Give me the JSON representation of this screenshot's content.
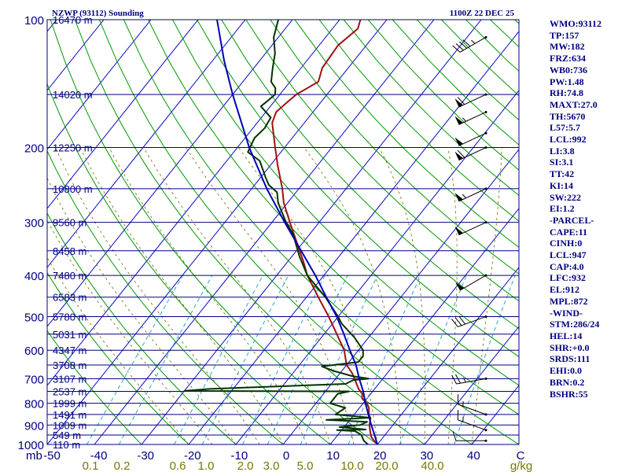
{
  "header": {
    "station_title": "NZWP (93112) Sounding",
    "valid_time": "1100Z 22 DEC 25"
  },
  "chart_data": {
    "type": "line",
    "xlabel": "C",
    "mixing_ratio_unit": "g/kg",
    "pressure_axis_label": "mb",
    "xlim": [
      -50,
      50
    ],
    "ylim": [
      1000,
      100
    ],
    "temperature_ticks": [
      "-50",
      "-40",
      "-30",
      "-20",
      "-10",
      "0",
      "10",
      "20",
      "30",
      "40",
      "C"
    ],
    "mixing_ratio_ticks": [
      "0.1",
      "0.2",
      "0.6",
      "1.0",
      "2.0",
      "3.0",
      "5.0",
      "10.0",
      "20.0",
      "40.0",
      "g/kg"
    ],
    "mixing_ratio_values": [
      0.1,
      0.2,
      0.6,
      1.0,
      2.0,
      3.0,
      5.0,
      10.0,
      20.0,
      40.0
    ],
    "pressure_ticks": [
      100,
      200,
      300,
      400,
      500,
      600,
      700,
      800,
      900,
      1000
    ],
    "heights": [
      {
        "p": 100,
        "label": "16470 m"
      },
      {
        "p": 150,
        "label": "14020 m"
      },
      {
        "p": 200,
        "label": "12250 m"
      },
      {
        "p": 250,
        "label": "10800 m"
      },
      {
        "p": 300,
        "label": "9560 m"
      },
      {
        "p": 350,
        "label": "8458 m"
      },
      {
        "p": 400,
        "label": "7480 m"
      },
      {
        "p": 450,
        "label": "6583 m"
      },
      {
        "p": 500,
        "label": "5780 m"
      },
      {
        "p": 550,
        "label": "5031 m"
      },
      {
        "p": 600,
        "label": "4347 m"
      },
      {
        "p": 650,
        "label": "3708 m"
      },
      {
        "p": 700,
        "label": "3107 m"
      },
      {
        "p": 750,
        "label": "2537 m"
      },
      {
        "p": 800,
        "label": "1999 m"
      },
      {
        "p": 850,
        "label": "1491 m"
      },
      {
        "p": 900,
        "label": "1009 m"
      },
      {
        "p": 950,
        "label": "549 m"
      },
      {
        "p": 1000,
        "label": "110 m"
      }
    ],
    "series": [
      {
        "key": "temperature",
        "color": "#a01010",
        "points": [
          [
            1000,
            20.0
          ],
          [
            985,
            19.0
          ],
          [
            960,
            17.4
          ],
          [
            925,
            16.0
          ],
          [
            900,
            15.0
          ],
          [
            870,
            14.2
          ],
          [
            850,
            13.1
          ],
          [
            820,
            12.0
          ],
          [
            800,
            10.8
          ],
          [
            780,
            9.0
          ],
          [
            760,
            8.2
          ],
          [
            740,
            6.6
          ],
          [
            700,
            4.0
          ],
          [
            680,
            2.6
          ],
          [
            650,
            0.0
          ],
          [
            600,
            -3.0
          ],
          [
            550,
            -7.3
          ],
          [
            500,
            -12.0
          ],
          [
            450,
            -17.5
          ],
          [
            400,
            -23.5
          ],
          [
            370,
            -26.8
          ],
          [
            340,
            -30.6
          ],
          [
            300,
            -36.2
          ],
          [
            270,
            -40.8
          ],
          [
            250,
            -43.5
          ],
          [
            220,
            -48.5
          ],
          [
            200,
            -52.0
          ],
          [
            175,
            -56.8
          ],
          [
            165,
            -57.8
          ],
          [
            155,
            -57.0
          ],
          [
            150,
            -56.5
          ],
          [
            140,
            -54.0
          ],
          [
            130,
            -55.5
          ],
          [
            115,
            -56.0
          ],
          [
            105,
            -54.6
          ],
          [
            100,
            -55.6
          ]
        ]
      },
      {
        "key": "dewpoint",
        "color": "#003300",
        "points": [
          [
            1000,
            18.0
          ],
          [
            980,
            16.5
          ],
          [
            950,
            15.0
          ],
          [
            930,
            13.0
          ],
          [
            925,
            9.0
          ],
          [
            922,
            15.0
          ],
          [
            910,
            9.0
          ],
          [
            900,
            13.0
          ],
          [
            885,
            14.0
          ],
          [
            875,
            5.0
          ],
          [
            865,
            14.0
          ],
          [
            850,
            6.0
          ],
          [
            820,
            7.0
          ],
          [
            800,
            3.0
          ],
          [
            780,
            3.0
          ],
          [
            760,
            3.0
          ],
          [
            750,
            5.0
          ],
          [
            748,
            -30.0
          ],
          [
            740,
            -25.0
          ],
          [
            720,
            3.0
          ],
          [
            705,
            4.0
          ],
          [
            700,
            7.0
          ],
          [
            690,
            3.0
          ],
          [
            670,
            -2.0
          ],
          [
            655,
            -5.0
          ],
          [
            640,
            2.0
          ],
          [
            620,
            2.0
          ],
          [
            600,
            1.0
          ],
          [
            560,
            -3.0
          ],
          [
            520,
            -8.0
          ],
          [
            500,
            -10.0
          ],
          [
            450,
            -16.0
          ],
          [
            400,
            -23.5
          ],
          [
            360,
            -28.5
          ],
          [
            320,
            -33.5
          ],
          [
            300,
            -37.0
          ],
          [
            270,
            -42.0
          ],
          [
            255,
            -44.0
          ],
          [
            245,
            -47.0
          ],
          [
            235,
            -49.0
          ],
          [
            215,
            -53.0
          ],
          [
            205,
            -57.0
          ],
          [
            190,
            -58.0
          ],
          [
            180,
            -57.5
          ],
          [
            170,
            -58.0
          ],
          [
            160,
            -62.0
          ],
          [
            155,
            -61.5
          ],
          [
            150,
            -61.0
          ],
          [
            145,
            -62.0
          ],
          [
            140,
            -64.0
          ],
          [
            130,
            -66.0
          ],
          [
            120,
            -68.0
          ],
          [
            110,
            -71.0
          ],
          [
            100,
            -73.0
          ]
        ]
      },
      {
        "key": "parcel",
        "color": "#0000b8",
        "points": [
          [
            1000,
            20.0
          ],
          [
            950,
            17.8
          ],
          [
            900,
            15.4
          ],
          [
            850,
            13.0
          ],
          [
            800,
            10.5
          ],
          [
            750,
            8.0
          ],
          [
            700,
            5.0
          ],
          [
            650,
            2.0
          ],
          [
            600,
            -1.8
          ],
          [
            550,
            -5.8
          ],
          [
            500,
            -10.3
          ],
          [
            450,
            -15.8
          ],
          [
            400,
            -21.8
          ],
          [
            350,
            -29.0
          ],
          [
            300,
            -37.3
          ],
          [
            250,
            -46.8
          ],
          [
            200,
            -57.5
          ],
          [
            175,
            -63.3
          ],
          [
            150,
            -70.0
          ],
          [
            125,
            -77.5
          ],
          [
            100,
            -86.0
          ]
        ]
      }
    ],
    "winds": [
      {
        "p": 110,
        "dir": 240,
        "kt": 45
      },
      {
        "p": 150,
        "dir": 245,
        "kt": 60
      },
      {
        "p": 165,
        "dir": 245,
        "kt": 55
      },
      {
        "p": 185,
        "dir": 245,
        "kt": 50
      },
      {
        "p": 200,
        "dir": 245,
        "kt": 60
      },
      {
        "p": 250,
        "dir": 245,
        "kt": 55
      },
      {
        "p": 300,
        "dir": 245,
        "kt": 50
      },
      {
        "p": 400,
        "dir": 240,
        "kt": 50
      },
      {
        "p": 500,
        "dir": 250,
        "kt": 30
      },
      {
        "p": 700,
        "dir": 260,
        "kt": 25
      },
      {
        "p": 850,
        "dir": 290,
        "kt": 15
      },
      {
        "p": 925,
        "dir": 290,
        "kt": 15
      },
      {
        "p": 980,
        "dir": 270,
        "kt": 10
      }
    ],
    "colors": {
      "border": "#000080",
      "isobar": "#000080",
      "isotherm": "#0000cc",
      "dry_adiabat": "#009900",
      "moist_adiabat": "#6b6b00",
      "mixing_ratio": "#2aa6c8",
      "labels": "#000080",
      "mixing_labels": "#777700"
    }
  },
  "indices": [
    "WMO:93112",
    "TP:157",
    "MW:182",
    "FRZ:634",
    "WB0:736",
    "PW:1.48",
    "RH:74.8",
    "MAXT:27.0",
    "TH:5670",
    "L57:5.7",
    "LCL:992",
    "LI:3.8",
    "SI:3.1",
    "TT:42",
    "KI:14",
    "SW:222",
    "EI:1.2",
    "-PARCEL-",
    "CAPE:11",
    "CINH:0",
    "LCL:947",
    "CAP:4.0",
    "LFC:932",
    "EL:912",
    "MPL:872",
    "-WIND-",
    "STM:286/24",
    "HEL:14",
    "SHR:+0.0",
    "SRDS:111",
    "EHI:0.0",
    "BRN:0.2",
    "BSHR:55"
  ]
}
